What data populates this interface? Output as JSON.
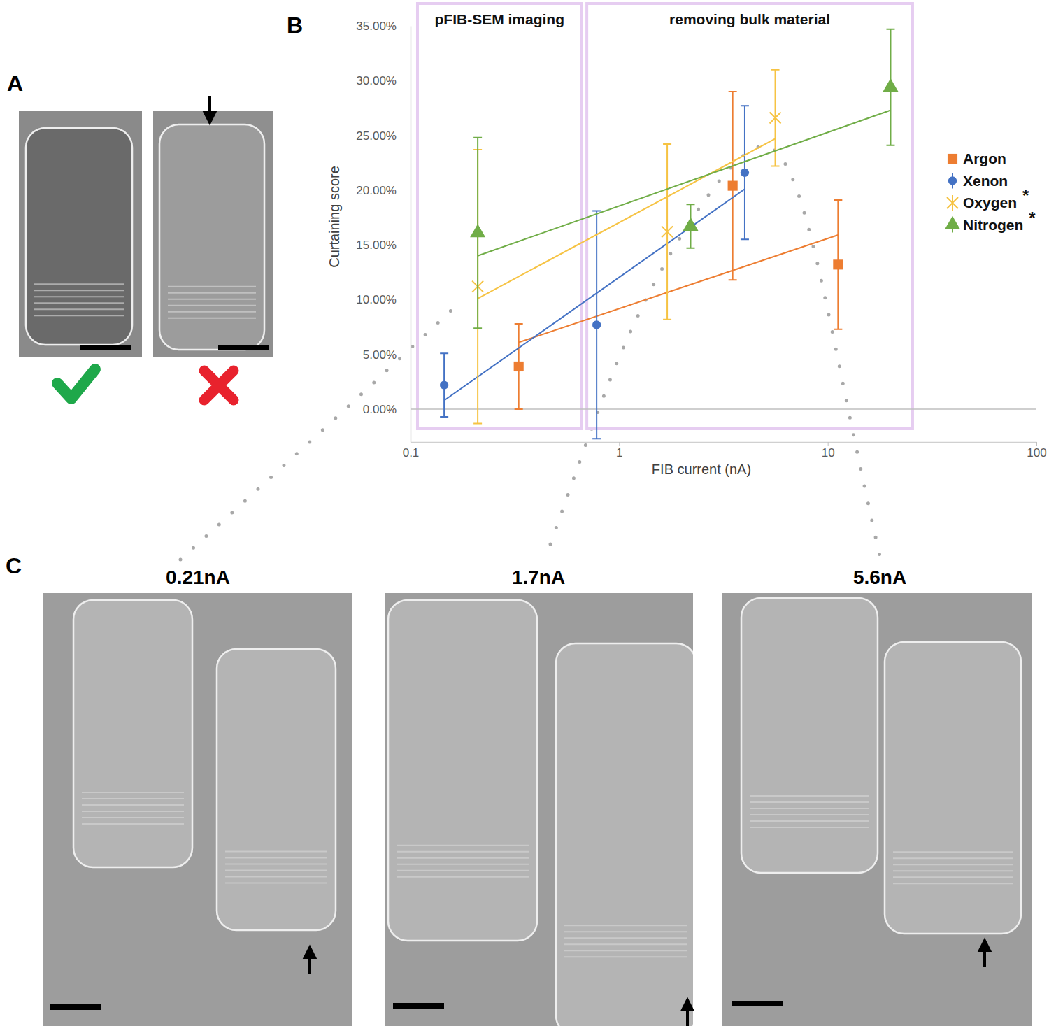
{
  "figure": {
    "panels": [
      "A",
      "B",
      "C"
    ],
    "micrographs": [
      "0.21nA",
      "1.7nA",
      "5.6nA"
    ]
  },
  "chart_data": {
    "type": "scatter",
    "x_label": "FIB current (nA)",
    "y_label": "Curtaining score",
    "log": "x",
    "xlim": [
      0.1,
      100
    ],
    "xticks": [
      0.1,
      1,
      10,
      100
    ],
    "ylim": [
      -3,
      35
    ],
    "yticks": [
      {
        "value": 0,
        "label": "0.00%"
      },
      {
        "value": 5,
        "label": "5.00%"
      },
      {
        "value": 10,
        "label": "10.00%"
      },
      {
        "value": 15,
        "label": "15.00%"
      },
      {
        "value": 20,
        "label": "20.00%"
      },
      {
        "value": 25,
        "label": "25.00%"
      },
      {
        "value": 30,
        "label": "30.00%"
      },
      {
        "value": 35,
        "label": "35.00%"
      }
    ],
    "legend": "right",
    "regions": [
      {
        "label": "pFIB-SEM imaging",
        "x": [
          0.108,
          0.66
        ]
      },
      {
        "label": "removing bulk material",
        "x": [
          0.7,
          25.5
        ]
      }
    ],
    "series": [
      {
        "name": "Argon",
        "color": "#ED7D31",
        "marker": "square",
        "x": [
          0.33,
          3.5,
          11.2
        ],
        "values": [
          3.9,
          20.4,
          13.2
        ],
        "errors": [
          3.9,
          8.6,
          5.9
        ],
        "trend": [
          6.1,
          15.9
        ]
      },
      {
        "name": "Xenon",
        "color": "#4472C4",
        "marker": "circle",
        "x": [
          0.145,
          0.78,
          4.0
        ],
        "values": [
          2.2,
          7.7,
          21.6
        ],
        "errors": [
          2.9,
          10.4,
          6.1
        ],
        "trend": [
          0.8,
          20.1
        ]
      },
      {
        "name": "Oxygen",
        "color": "#F6C343",
        "marker": "x",
        "note": "*",
        "x": [
          0.21,
          1.7,
          5.6
        ],
        "values": [
          11.2,
          16.2,
          26.6
        ],
        "errors": [
          12.5,
          8.0,
          4.4
        ],
        "trend": [
          10.1,
          24.7
        ]
      },
      {
        "name": "Nitrogen",
        "color": "#70AD47",
        "marker": "triangle",
        "note": "*",
        "x": [
          0.21,
          2.2,
          20
        ],
        "values": [
          16.1,
          16.7,
          29.4
        ],
        "errors": [
          8.7,
          2.0,
          5.3
        ],
        "trend": [
          14.0,
          27.3
        ]
      }
    ]
  }
}
